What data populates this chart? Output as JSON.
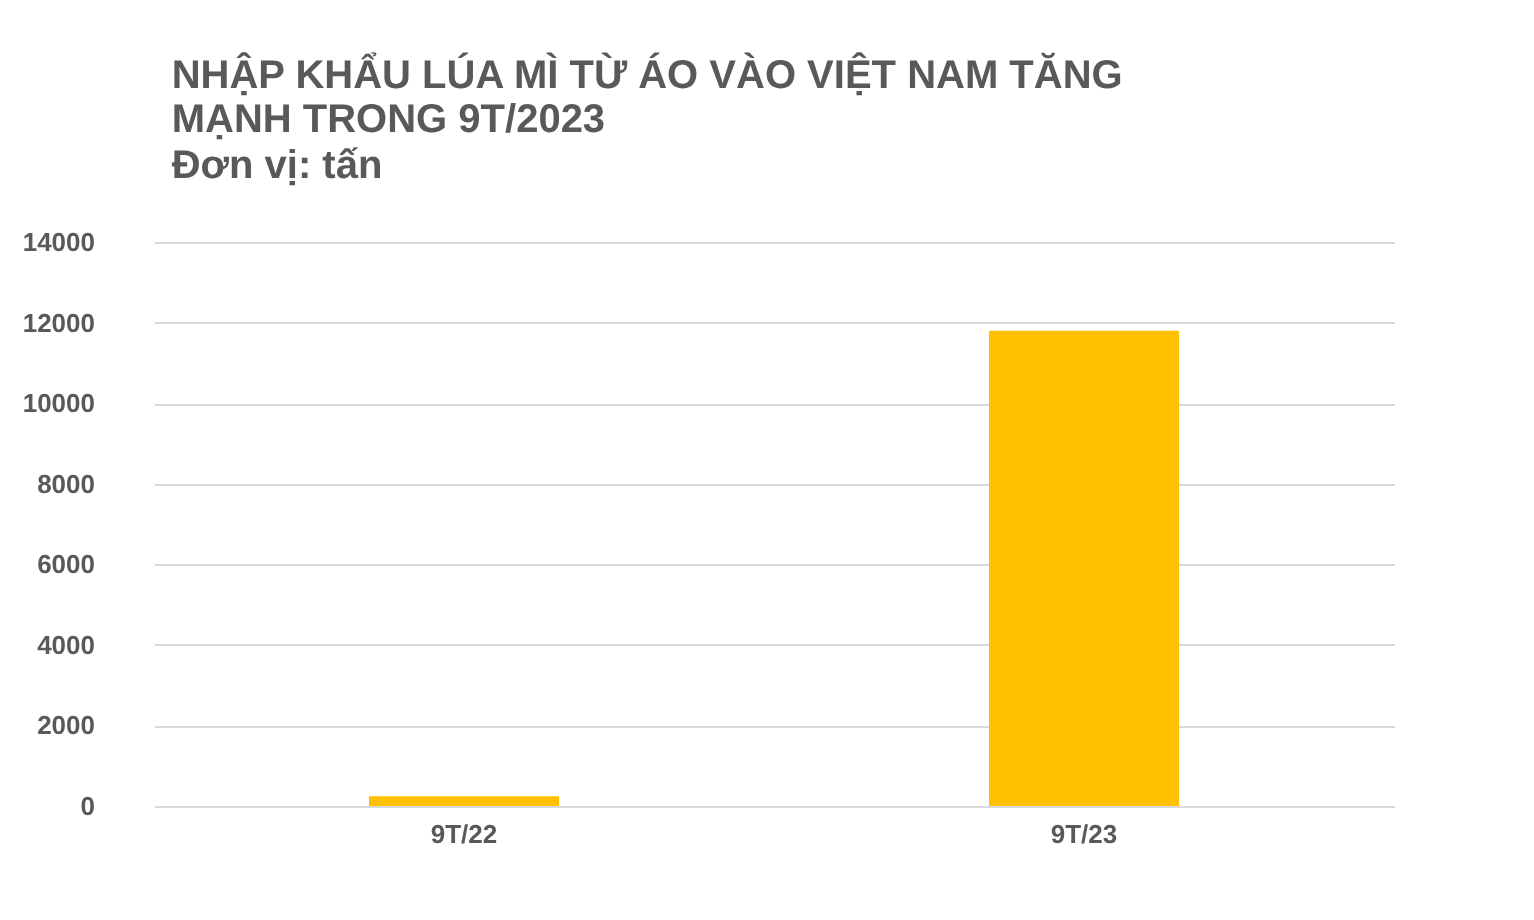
{
  "chart_data": {
    "type": "bar",
    "title": "NHẬP KHẨU LÚA MÌ TỪ ÁO VÀO VIỆT NAM TĂNG MẠNH TRONG 9T/2023",
    "subtitle": "Đơn vị: tấn",
    "categories": [
      "9T/22",
      "9T/23"
    ],
    "values": [
      240,
      11800
    ],
    "color": "#ffc000",
    "ylim": [
      0,
      14000
    ],
    "yticks": [
      0,
      2000,
      4000,
      6000,
      8000,
      10000,
      12000,
      14000
    ],
    "grid": "y"
  }
}
